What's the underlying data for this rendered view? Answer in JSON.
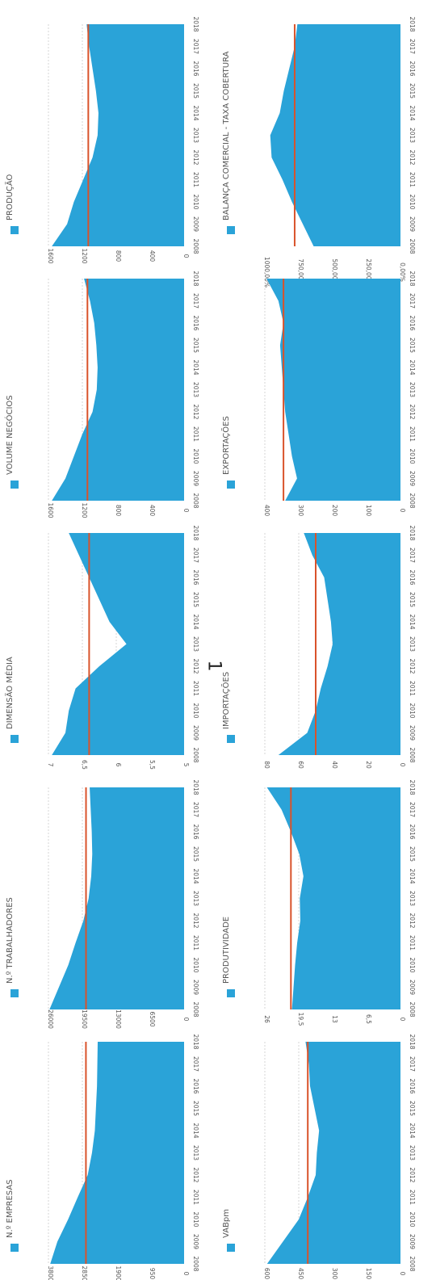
{
  "page_number": "1",
  "colors": {
    "area": "#2aa3d8",
    "reference_line": "#d9532b",
    "grid": "#bbbbbb",
    "text": "#555555"
  },
  "chart_data": [
    {
      "type": "area",
      "legend": "N.º EMPRESAS",
      "x": [
        "2008",
        "2009",
        "2010",
        "2011",
        "2012",
        "2013",
        "2014",
        "2015",
        "2016",
        "2017",
        "2018"
      ],
      "values": [
        3750,
        3550,
        3250,
        2980,
        2700,
        2580,
        2500,
        2470,
        2440,
        2430,
        2420
      ],
      "reference": 2750,
      "yticks": [
        "0",
        "950",
        "1900",
        "2850",
        "3800"
      ],
      "ylim": [
        0,
        3800
      ]
    },
    {
      "type": "area",
      "legend": "VABpm",
      "x": [
        "2008",
        "2009",
        "2010",
        "2011",
        "2012",
        "2013",
        "2014",
        "2015",
        "2016",
        "2017",
        "2018"
      ],
      "values": [
        590,
        520,
        450,
        410,
        375,
        370,
        360,
        380,
        400,
        405,
        420
      ],
      "reference": 410,
      "yticks": [
        "0",
        "150",
        "300",
        "450",
        "600"
      ],
      "ylim": [
        0,
        600
      ]
    },
    {
      "type": "area",
      "legend": "N.º TRABALHADORES",
      "x": [
        "2008",
        "2009",
        "2010",
        "2011",
        "2012",
        "2013",
        "2014",
        "2015",
        "2016",
        "2017",
        "2018"
      ],
      "values": [
        25800,
        24000,
        22200,
        20800,
        19300,
        18300,
        17800,
        17600,
        17700,
        17900,
        18100
      ],
      "reference": 18800,
      "yticks": [
        "0",
        "6500",
        "13000",
        "19500",
        "26000"
      ],
      "ylim": [
        0,
        26000
      ]
    },
    {
      "type": "area",
      "legend": "PRODUTIVIDADE",
      "x": [
        "2008",
        "2009",
        "2010",
        "2011",
        "2012",
        "2013",
        "2014",
        "2015",
        "2016",
        "2017",
        "2018"
      ],
      "values": [
        20.8,
        20.5,
        20.2,
        19.8,
        19.2,
        19.3,
        18.6,
        19.4,
        21.0,
        22.8,
        25.6
      ],
      "reference": 21.0,
      "yticks": [
        "0",
        "6,5",
        "13",
        "19,5",
        "26"
      ],
      "ylim": [
        0,
        26
      ]
    },
    {
      "type": "area",
      "legend": "DIMENSÃO MÉDIA",
      "x": [
        "2008",
        "2009",
        "2010",
        "2011",
        "2012",
        "2013",
        "2014",
        "2015",
        "2016",
        "2017",
        "2018"
      ],
      "values": [
        6.95,
        6.75,
        6.7,
        6.6,
        6.25,
        5.85,
        6.1,
        6.25,
        6.4,
        6.55,
        6.7
      ],
      "reference": 6.4,
      "yticks": [
        "5",
        "5,5",
        "6",
        "6,5",
        "7"
      ],
      "ylim": [
        5,
        7
      ]
    },
    {
      "type": "area",
      "legend": "IMPORTAÇÕES",
      "x": [
        "2008",
        "2009",
        "2010",
        "2011",
        "2012",
        "2013",
        "2014",
        "2015",
        "2016",
        "2017",
        "2018"
      ],
      "values": [
        72,
        55,
        50,
        47,
        43,
        40,
        41,
        43,
        45,
        52,
        57
      ],
      "reference": 50,
      "yticks": [
        "0",
        "20",
        "40",
        "60",
        "80"
      ],
      "ylim": [
        0,
        80
      ]
    },
    {
      "type": "area",
      "legend": "VOLUME NEGÓCIOS",
      "x": [
        "2008",
        "2009",
        "2010",
        "2011",
        "2012",
        "2013",
        "2014",
        "2015",
        "2016",
        "2017",
        "2018"
      ],
      "values": [
        1560,
        1400,
        1300,
        1200,
        1080,
        1030,
        1020,
        1035,
        1060,
        1110,
        1180
      ],
      "reference": 1140,
      "yticks": [
        "0",
        "400",
        "800",
        "1200",
        "1600"
      ],
      "ylim": [
        0,
        1600
      ]
    },
    {
      "type": "area",
      "legend": "EXPORTAÇÕES",
      "x": [
        "2008",
        "2009",
        "2010",
        "2011",
        "2012",
        "2013",
        "2014",
        "2015",
        "2016",
        "2017",
        "2018"
      ],
      "values": [
        340,
        305,
        320,
        330,
        340,
        345,
        350,
        355,
        345,
        360,
        395
      ],
      "reference": 345,
      "yticks": [
        "0",
        "100",
        "200",
        "300",
        "400"
      ],
      "ylim": [
        0,
        400
      ],
      "yticks_right": [
        "0,00%",
        "250,00%",
        "500,00%",
        "750,00%",
        "1000,00%"
      ]
    },
    {
      "type": "area",
      "legend": "PRODUÇÃO",
      "x": [
        "2008",
        "2009",
        "2010",
        "2011",
        "2012",
        "2013",
        "2014",
        "2015",
        "2016",
        "2017",
        "2018"
      ],
      "values": [
        1560,
        1380,
        1300,
        1190,
        1080,
        1020,
        1010,
        1040,
        1080,
        1120,
        1150
      ],
      "reference": 1130,
      "yticks": [
        "0",
        "400",
        "800",
        "1200",
        "1600"
      ],
      "ylim": [
        0,
        1600
      ]
    },
    {
      "type": "area",
      "legend": "BALANÇA COMERCIAL - TAXA COBERTURA",
      "x": [
        "2008",
        "2009",
        "2010",
        "2011",
        "2012",
        "2013",
        "2014",
        "2015",
        "2016",
        "2017",
        "2018"
      ],
      "values": [
        640,
        720,
        800,
        870,
        950,
        960,
        890,
        860,
        820,
        780,
        760
      ],
      "reference": 780,
      "ylim": [
        0,
        1000
      ]
    }
  ]
}
